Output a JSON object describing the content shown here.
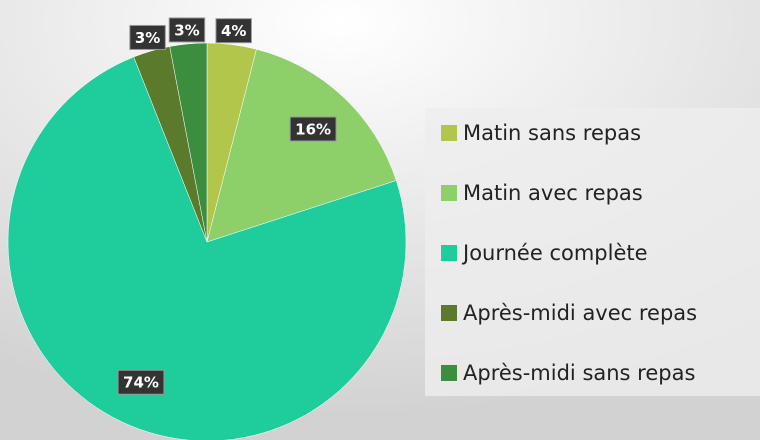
{
  "chart_data": {
    "type": "pie",
    "categories": [
      "Matin sans repas",
      "Matin avec repas",
      "Journée complète",
      "Après-midi avec repas",
      "Après-midi sans repas"
    ],
    "values": [
      4,
      16,
      74,
      3,
      3
    ],
    "value_labels": [
      "4%",
      "16%",
      "74%",
      "3%",
      "3%"
    ],
    "colors": [
      "#b2c64b",
      "#8dcf68",
      "#1fcc9c",
      "#5b7a2b",
      "#3a8e3e"
    ],
    "legend": "right"
  }
}
